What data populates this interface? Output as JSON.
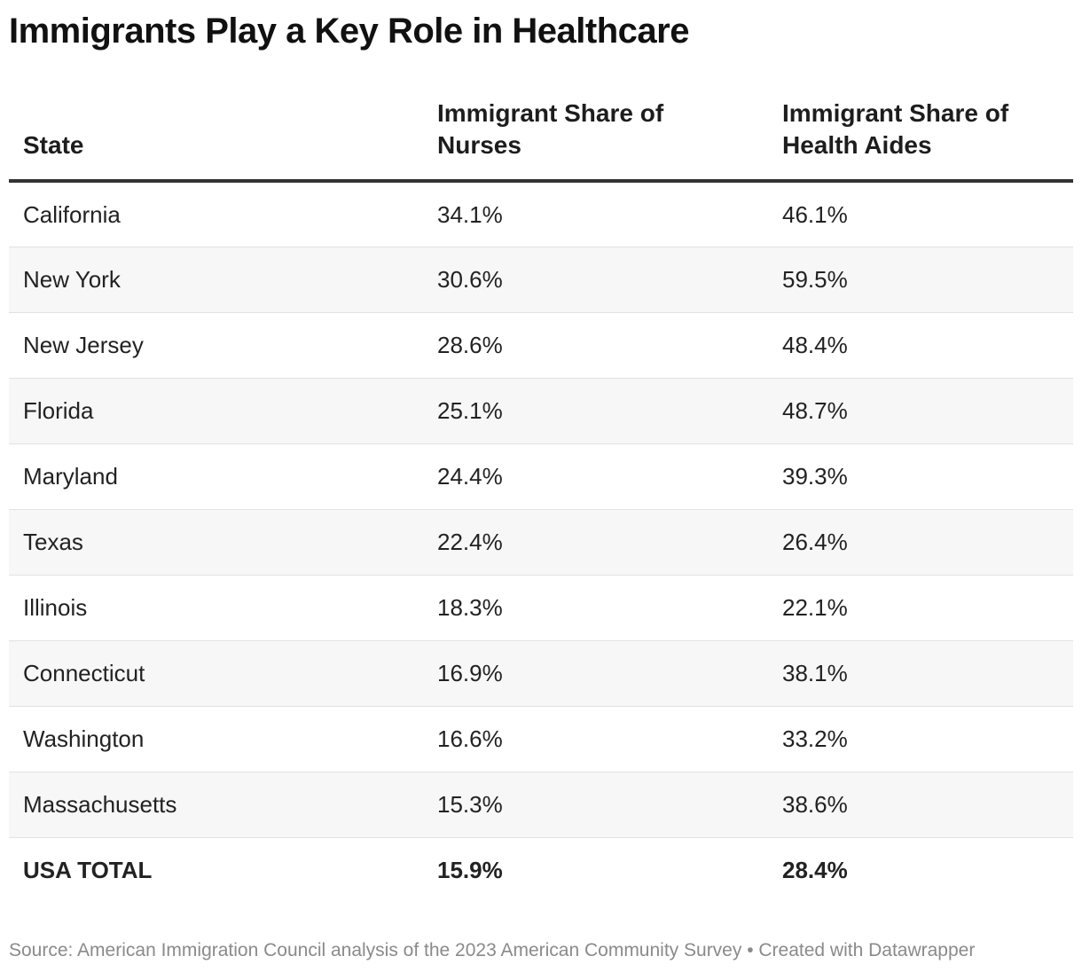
{
  "title": "Immigrants Play a Key Role in Healthcare",
  "source_note": "Source: American Immigration Council analysis of the 2023 American Community Survey • Created with Datawrapper",
  "chart_data": {
    "type": "table",
    "title": "Immigrants Play a Key Role in Healthcare",
    "columns": [
      "State",
      "Immigrant Share of Nurses",
      "Immigrant Share of Health Aides"
    ],
    "rows": [
      {
        "state": "California",
        "nurses": "34.1%",
        "aides": "46.1%"
      },
      {
        "state": "New York",
        "nurses": "30.6%",
        "aides": "59.5%"
      },
      {
        "state": "New Jersey",
        "nurses": "28.6%",
        "aides": "48.4%"
      },
      {
        "state": "Florida",
        "nurses": "25.1%",
        "aides": "48.7%"
      },
      {
        "state": "Maryland",
        "nurses": "24.4%",
        "aides": "39.3%"
      },
      {
        "state": "Texas",
        "nurses": "22.4%",
        "aides": "26.4%"
      },
      {
        "state": "Illinois",
        "nurses": "18.3%",
        "aides": "22.1%"
      },
      {
        "state": "Connecticut",
        "nurses": "16.9%",
        "aides": "38.1%"
      },
      {
        "state": "Washington",
        "nurses": "16.6%",
        "aides": "33.2%"
      },
      {
        "state": "Massachusetts",
        "nurses": "15.3%",
        "aides": "38.6%"
      }
    ],
    "total": {
      "state": "USA TOTAL",
      "nurses": "15.9%",
      "aides": "28.4%"
    }
  }
}
